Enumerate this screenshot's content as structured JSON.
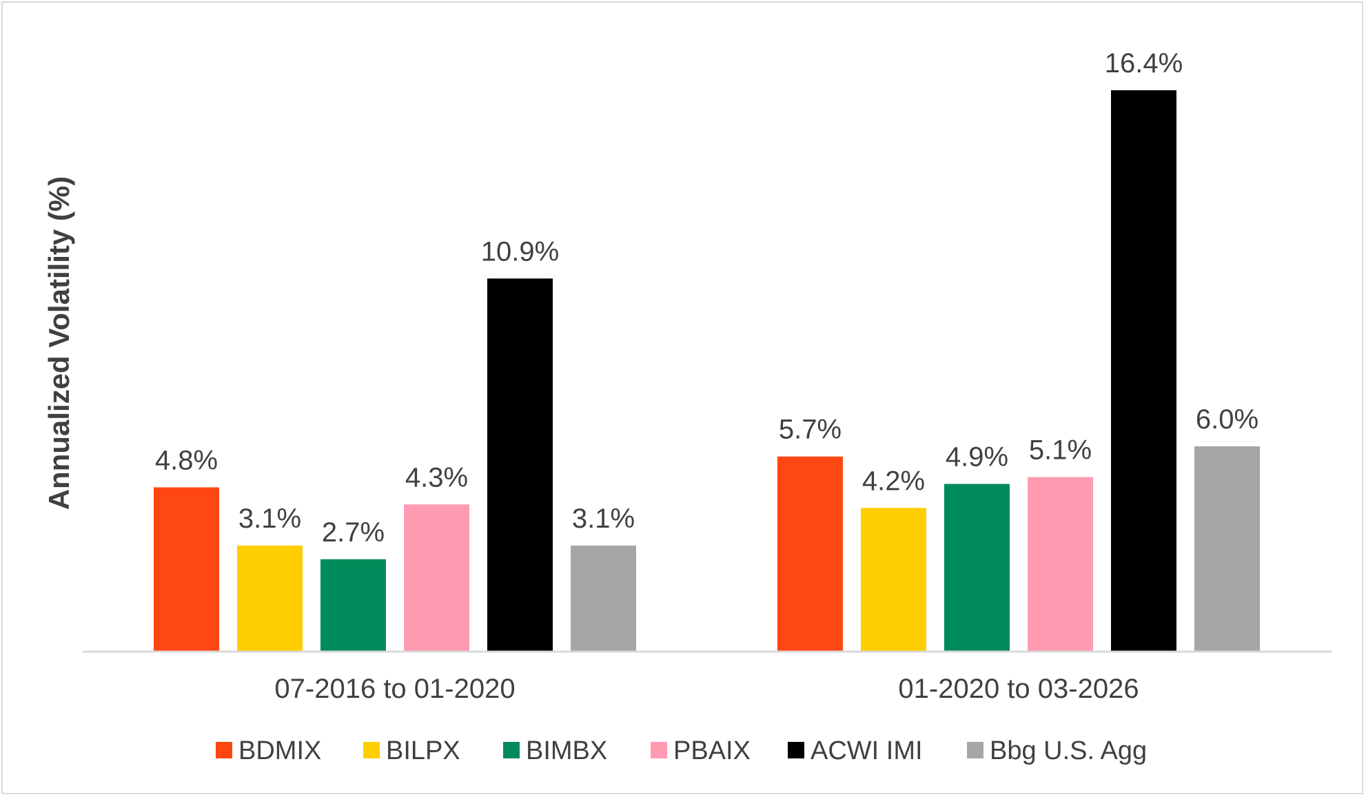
{
  "chart_data": {
    "type": "bar",
    "ylabel": "Annualized Volatility (%)",
    "xlabel": "",
    "categories": [
      "07-2016 to 01-2020",
      "01-2020 to 03-2026"
    ],
    "series": [
      {
        "name": "BDMIX",
        "color": "#ff4713",
        "values": [
          4.8,
          5.7
        ],
        "labels": [
          "4.8%",
          "5.7%"
        ]
      },
      {
        "name": "BILPX",
        "color": "#ffce00",
        "values": [
          3.1,
          4.2
        ],
        "labels": [
          "3.1%",
          "4.2%"
        ]
      },
      {
        "name": "BIMBX",
        "color": "#008c5a",
        "values": [
          2.7,
          4.9
        ],
        "labels": [
          "2.7%",
          "4.9%"
        ]
      },
      {
        "name": "PBAIX",
        "color": "#ff9bb3",
        "values": [
          4.3,
          5.1
        ],
        "labels": [
          "4.3%",
          "5.1%"
        ]
      },
      {
        "name": "ACWI IMI",
        "color": "#000000",
        "values": [
          10.9,
          16.4
        ],
        "labels": [
          "10.9%",
          "16.4%"
        ]
      },
      {
        "name": "Bbg U.S. Agg",
        "color": "#a6a6a6",
        "values": [
          3.1,
          6.0
        ],
        "labels": [
          "3.1%",
          "6.0%"
        ]
      }
    ],
    "ylim": [
      0,
      17.5
    ],
    "grid": false,
    "legend_position": "bottom"
  }
}
